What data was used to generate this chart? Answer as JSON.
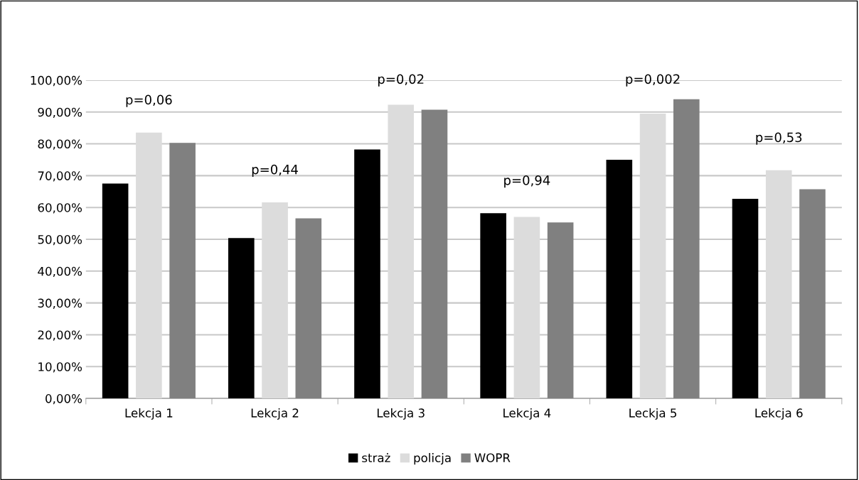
{
  "chart_data": {
    "type": "bar",
    "categories": [
      "Lekcja 1",
      "Lekcja 2",
      "Lekcja 3",
      "Lekcja 4",
      "Leckja 5",
      "Lekcja 6"
    ],
    "series": [
      {
        "name": "straż",
        "color": "#000000",
        "values": [
          67.5,
          50.4,
          78.2,
          58.2,
          75.0,
          62.7
        ]
      },
      {
        "name": "policja",
        "color": "#dcdcdc",
        "values": [
          83.5,
          61.6,
          92.3,
          57.0,
          89.5,
          71.7
        ]
      },
      {
        "name": "WOPR",
        "color": "#808080",
        "values": [
          80.3,
          56.6,
          90.7,
          55.3,
          94.0,
          65.7
        ]
      }
    ],
    "ylim": [
      0,
      100
    ],
    "yticks": [
      {
        "value": 0,
        "label": "0,00%"
      },
      {
        "value": 10,
        "label": "10,00%"
      },
      {
        "value": 20,
        "label": "20,00%"
      },
      {
        "value": 30,
        "label": "30,00%"
      },
      {
        "value": 40,
        "label": "40,00%"
      },
      {
        "value": 50,
        "label": "50,00%"
      },
      {
        "value": 60,
        "label": "60,00%"
      },
      {
        "value": 70,
        "label": "70,00%"
      },
      {
        "value": 80,
        "label": "80,00%"
      },
      {
        "value": 90,
        "label": "90,00%"
      },
      {
        "value": 100,
        "label": "100,00%"
      }
    ],
    "annotations": [
      "p=0,06",
      "p=0,44",
      "p=0,02",
      "p=0,94",
      "p=0,002",
      "p=0,53"
    ],
    "grid": "y",
    "legend": "bottom"
  }
}
